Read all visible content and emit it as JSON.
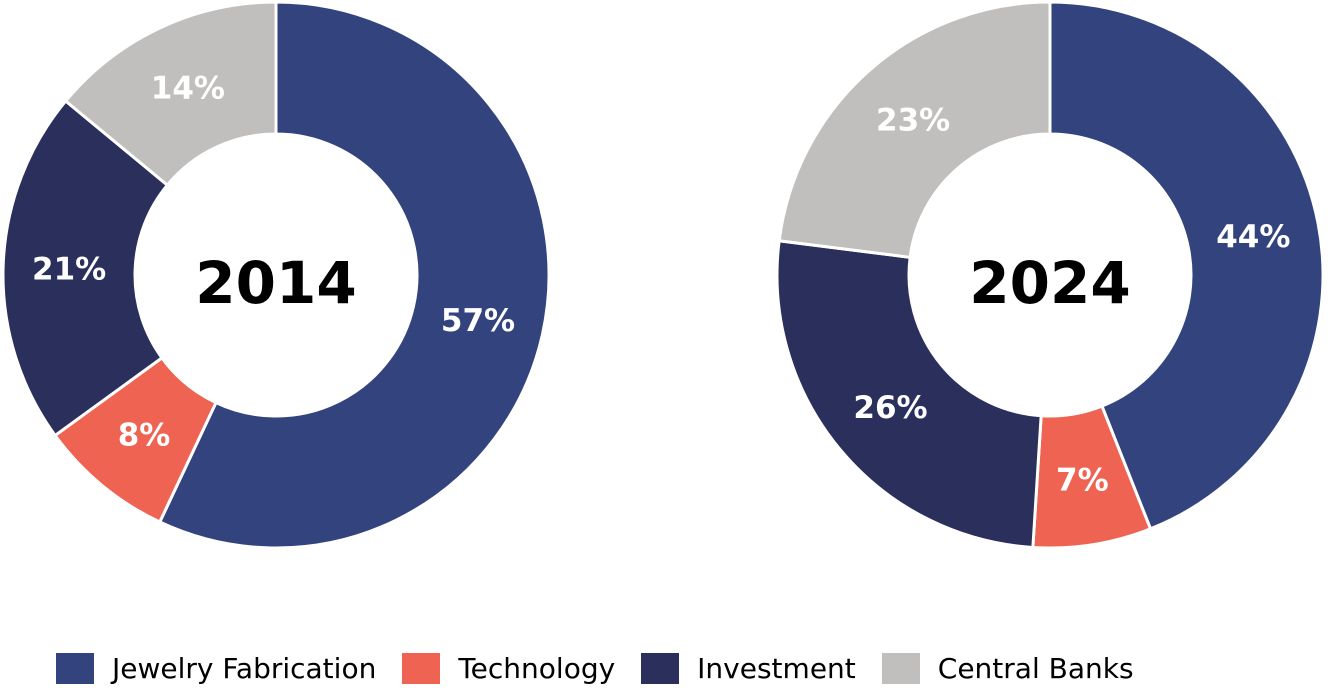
{
  "chart_data": [
    {
      "type": "donut",
      "center_label": "2014",
      "categories": [
        "Jewelry Fabrication",
        "Technology",
        "Investment",
        "Central Banks"
      ],
      "values": [
        57,
        8,
        21,
        14
      ],
      "value_labels": [
        "57%",
        "8%",
        "21%",
        "14%"
      ],
      "colors": [
        "#33437d",
        "#ee6352",
        "#2a2f5c",
        "#c0bfbd"
      ]
    },
    {
      "type": "donut",
      "center_label": "2024",
      "categories": [
        "Jewelry Fabrication",
        "Technology",
        "Investment",
        "Central Banks"
      ],
      "values": [
        44,
        7,
        26,
        23
      ],
      "value_labels": [
        "44%",
        "7%",
        "26%",
        "23%"
      ],
      "colors": [
        "#33437d",
        "#ee6352",
        "#2a2f5c",
        "#c0bfbd"
      ]
    }
  ],
  "legend": {
    "placement": "bottom",
    "items": [
      {
        "label": "Jewelry Fabrication",
        "color": "#33437d"
      },
      {
        "label": "Technology",
        "color": "#ee6352"
      },
      {
        "label": "Investment",
        "color": "#2a2f5c"
      },
      {
        "label": "Central Banks",
        "color": "#c0bfbd"
      }
    ]
  }
}
